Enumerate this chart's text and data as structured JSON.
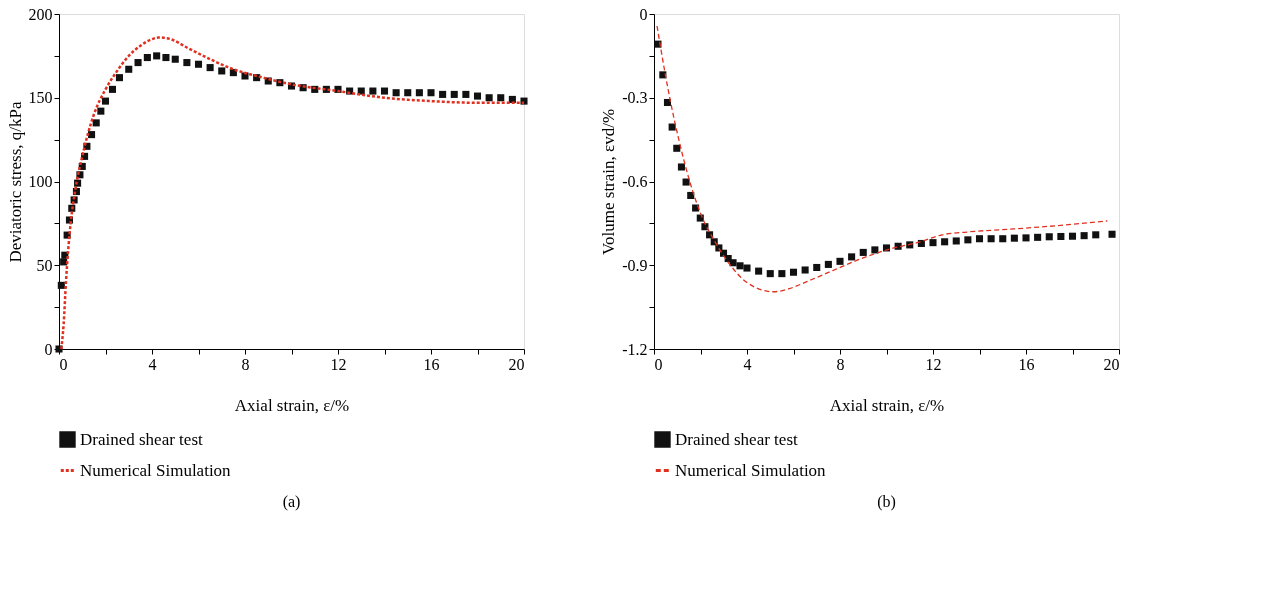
{
  "chart_data": [
    {
      "type": "scatter",
      "title": "(a)",
      "xlabel": "Axial strain, ε/%",
      "ylabel": "Deviatoric stress, q/kPa",
      "xlim": [
        0,
        20
      ],
      "ylim": [
        0,
        200
      ],
      "xticks": [
        0,
        {
          "value": 2,
          "label": null
        },
        4,
        {
          "value": 6,
          "label": null
        },
        8,
        {
          "value": 10,
          "label": null
        },
        12,
        {
          "value": 14,
          "label": null
        },
        16,
        {
          "value": 18,
          "label": null
        },
        20
      ],
      "yticks": [
        0,
        {
          "value": 25,
          "label": null
        },
        50,
        {
          "value": 75,
          "label": null
        },
        100,
        {
          "value": 125,
          "label": null
        },
        150,
        {
          "value": 175,
          "label": null
        },
        200
      ],
      "legend": "bottom",
      "grid": false,
      "series": [
        {
          "name": "Drained shear test",
          "marker": "square",
          "color": "#111111",
          "x": [
            0,
            0.1,
            0.2,
            0.25,
            0.35,
            0.45,
            0.55,
            0.65,
            0.75,
            0.8,
            0.9,
            1.0,
            1.1,
            1.2,
            1.4,
            1.6,
            1.8,
            2.0,
            2.3,
            2.6,
            3.0,
            3.4,
            3.8,
            4.2,
            4.6,
            5.0,
            5.5,
            6.0,
            6.5,
            7.0,
            7.5,
            8.0,
            8.5,
            9.0,
            9.5,
            10,
            10.5,
            11,
            11.5,
            12,
            12.5,
            13,
            13.5,
            14,
            14.5,
            15,
            15.5,
            16,
            16.5,
            17,
            17.5,
            18,
            18.5,
            19,
            19.5,
            20
          ],
          "values": [
            0,
            38,
            52,
            56,
            68,
            77,
            84,
            89,
            94,
            99,
            104,
            109,
            115,
            121,
            128,
            135,
            142,
            148,
            155,
            162,
            167,
            171,
            174,
            175,
            174,
            173,
            171,
            170,
            168,
            166,
            165,
            163,
            162,
            160,
            159,
            157,
            156,
            155,
            155,
            155,
            154,
            154,
            154,
            154,
            153,
            153,
            153,
            153,
            152,
            152,
            152,
            151,
            150,
            150,
            149,
            148
          ]
        },
        {
          "name": "Numerical Simulation",
          "type": "line",
          "line_style": "dotted",
          "color": "#e03020",
          "x": [
            0.1,
            0.2,
            0.3,
            0.4,
            0.5,
            0.7,
            1.0,
            1.5,
            2.0,
            2.5,
            3.0,
            3.5,
            4.0,
            4.3,
            4.8,
            5.5,
            6.5,
            7.5,
            8.5,
            10,
            12,
            14,
            16,
            18,
            20
          ],
          "values": [
            0,
            15,
            40,
            60,
            75,
            95,
            115,
            140,
            155,
            166,
            175,
            181,
            185,
            186,
            185,
            180,
            173,
            167,
            163,
            158,
            154,
            150,
            148,
            147,
            147
          ]
        }
      ]
    },
    {
      "type": "scatter",
      "title": "(b)",
      "xlabel": "Axial strain, ε/%",
      "ylabel": "Volume strain, εvd/%",
      "xlim": [
        0,
        20
      ],
      "ylim": [
        -1.2,
        0
      ],
      "xticks": [
        0,
        {
          "value": 2,
          "label": null
        },
        4,
        {
          "value": 6,
          "label": null
        },
        8,
        {
          "value": 10,
          "label": null
        },
        12,
        {
          "value": 14,
          "label": null
        },
        16,
        {
          "value": 18,
          "label": null
        },
        20
      ],
      "yticks": [
        -1.2,
        {
          "value": -1.05,
          "label": null
        },
        -0.9,
        {
          "value": -0.75,
          "label": null
        },
        -0.6,
        {
          "value": -0.45,
          "label": null
        },
        -0.3,
        {
          "value": -0.15,
          "label": null
        },
        0
      ],
      "legend": "bottom",
      "grid": false,
      "series": [
        {
          "name": "Drained shear test",
          "marker": "square",
          "color": "#111111",
          "x": [
            0.17,
            0.38,
            0.58,
            0.78,
            0.98,
            1.18,
            1.38,
            1.58,
            1.79,
            1.99,
            2.19,
            2.39,
            2.59,
            2.79,
            2.99,
            3.19,
            3.4,
            3.7,
            4.0,
            4.5,
            5.0,
            5.5,
            6.0,
            6.5,
            7.0,
            7.5,
            8.0,
            8.5,
            9.0,
            9.5,
            10,
            10.5,
            11,
            11.5,
            12,
            12.5,
            13,
            13.5,
            14,
            14.5,
            15,
            15.5,
            16,
            16.5,
            17,
            17.5,
            18,
            18.5,
            19,
            19.7
          ],
          "values": [
            -0.108,
            -0.218,
            -0.317,
            -0.405,
            -0.481,
            -0.548,
            -0.602,
            -0.65,
            -0.695,
            -0.731,
            -0.762,
            -0.791,
            -0.816,
            -0.838,
            -0.857,
            -0.876,
            -0.891,
            -0.902,
            -0.91,
            -0.921,
            -0.93,
            -0.93,
            -0.925,
            -0.917,
            -0.908,
            -0.897,
            -0.886,
            -0.87,
            -0.854,
            -0.845,
            -0.838,
            -0.832,
            -0.827,
            -0.822,
            -0.819,
            -0.816,
            -0.813,
            -0.809,
            -0.805,
            -0.805,
            -0.805,
            -0.803,
            -0.802,
            -0.8,
            -0.798,
            -0.797,
            -0.796,
            -0.794,
            -0.791,
            -0.789
          ]
        },
        {
          "name": "Numerical Simulation",
          "type": "line",
          "line_style": "dashed",
          "color": "#e03020",
          "x": [
            0.13,
            0.44,
            0.71,
            1.11,
            1.52,
            2.05,
            2.59,
            3.26,
            4.0,
            5.14,
            5.81,
            6.62,
            7.69,
            8.77,
            10.1,
            11.45,
            12.39,
            13.46,
            15.47,
            17.5,
            19.5
          ],
          "values": [
            -0.043,
            -0.195,
            -0.314,
            -0.465,
            -0.595,
            -0.724,
            -0.811,
            -0.897,
            -0.962,
            -0.995,
            -0.984,
            -0.957,
            -0.919,
            -0.881,
            -0.843,
            -0.816,
            -0.791,
            -0.781,
            -0.77,
            -0.757,
            -0.741
          ]
        }
      ]
    }
  ]
}
